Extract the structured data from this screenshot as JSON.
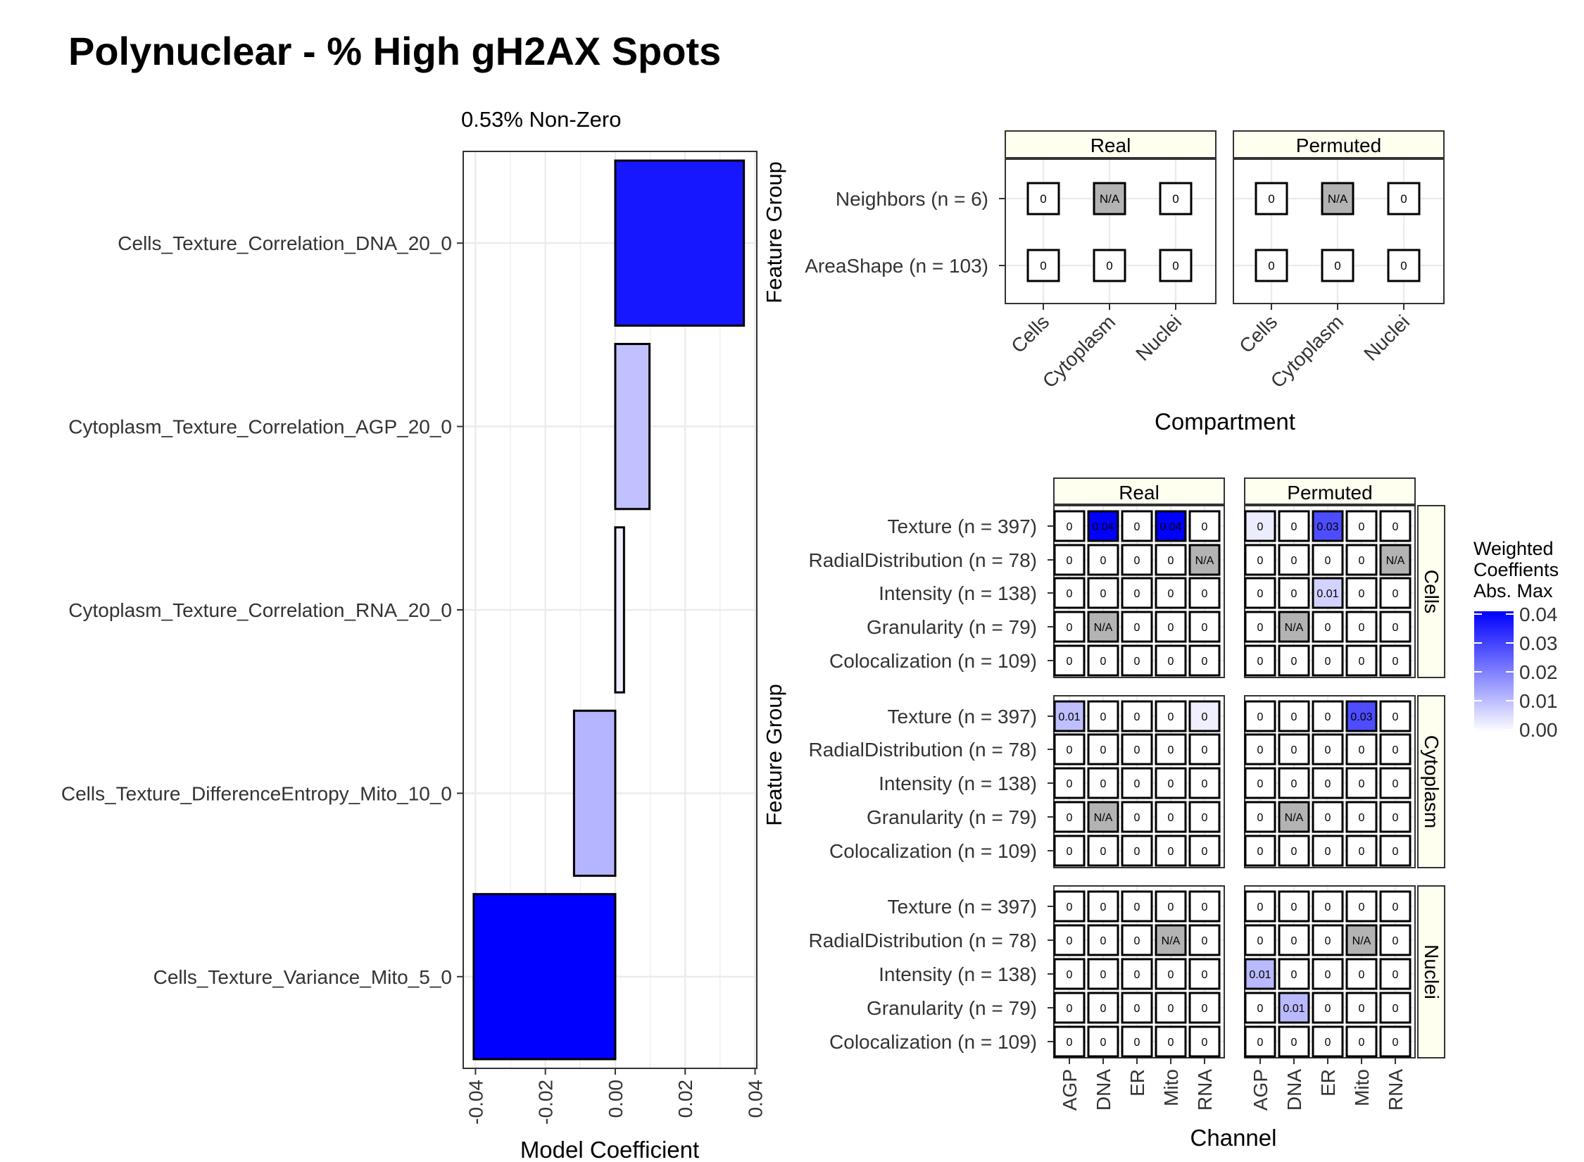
{
  "title": "Polynuclear - % High gH2AX Spots",
  "colors": {
    "fill_max": "#0000FF",
    "fill_min": "#FFFFFF",
    "na_fill": "#B3B3B3",
    "strip_fill": "#FFFFF0",
    "grid": "#EBEBEB"
  },
  "chart_data": [
    {
      "type": "bar",
      "orientation": "horizontal",
      "subtitle": "0.53% Non-Zero",
      "xlabel": "Model Coefficient",
      "categories": [
        "Cells_Texture_Correlation_DNA_20_0",
        "Cytoplasm_Texture_Correlation_AGP_20_0",
        "Cytoplasm_Texture_Correlation_RNA_20_0",
        "Cells_Texture_DifferenceEntropy_Mito_10_0",
        "Cells_Texture_Variance_Mito_5_0"
      ],
      "values": [
        0.0368,
        0.0098,
        0.0025,
        -0.0118,
        -0.0405
      ],
      "xlim": [
        -0.0435,
        0.0405
      ],
      "xticks": [
        -0.04,
        -0.02,
        0.0,
        0.02,
        0.04
      ],
      "xtick_labels": [
        "-0.04",
        "-0.02",
        "0.00",
        "0.02",
        "0.04"
      ],
      "grid": true
    },
    {
      "type": "heatmap",
      "xlabel": "Compartment",
      "ylabel": "Feature Group",
      "facets": [
        "Real",
        "Permuted"
      ],
      "columns": [
        "Cells",
        "Cytoplasm",
        "Nuclei"
      ],
      "rows": [
        "Neighbors (n = 6)",
        "AreaShape (n = 103)"
      ],
      "cells": {
        "Real": [
          [
            "0",
            "N/A",
            "0"
          ],
          [
            "0",
            "0",
            "0"
          ]
        ],
        "Permuted": [
          [
            "0",
            "N/A",
            "0"
          ],
          [
            "0",
            "0",
            "0"
          ]
        ]
      }
    },
    {
      "type": "heatmap",
      "xlabel": "Channel",
      "ylabel": "Feature Group",
      "col_facets": [
        "Real",
        "Permuted"
      ],
      "row_facets": [
        "Cells",
        "Cytoplasm",
        "Nuclei"
      ],
      "columns": [
        "AGP",
        "DNA",
        "ER",
        "Mito",
        "RNA"
      ],
      "rows": [
        "Texture (n = 397)",
        "RadialDistribution (n = 78)",
        "Intensity (n = 138)",
        "Granularity (n = 79)",
        "Colocalization (n = 109)"
      ],
      "cells": {
        "Cells": {
          "Real": [
            [
              "0",
              "0.04",
              "0",
              "0.04",
              "0"
            ],
            [
              "0",
              "0",
              "0",
              "0",
              "N/A"
            ],
            [
              "0",
              "0",
              "0",
              "0",
              "0"
            ],
            [
              "0",
              "N/A",
              "0",
              "0",
              "0"
            ],
            [
              "0",
              "0",
              "0",
              "0",
              "0"
            ]
          ],
          "Permuted": [
            [
              "0",
              "0",
              "0.03",
              "0",
              "0"
            ],
            [
              "0",
              "0",
              "0",
              "0",
              "N/A"
            ],
            [
              "0",
              "0",
              "0.01",
              "0",
              "0"
            ],
            [
              "0",
              "N/A",
              "0",
              "0",
              "0"
            ],
            [
              "0",
              "0",
              "0",
              "0",
              "0"
            ]
          ]
        },
        "Cytoplasm": {
          "Real": [
            [
              "0.01",
              "0",
              "0",
              "0",
              "0"
            ],
            [
              "0",
              "0",
              "0",
              "0",
              "0"
            ],
            [
              "0",
              "0",
              "0",
              "0",
              "0"
            ],
            [
              "0",
              "N/A",
              "0",
              "0",
              "0"
            ],
            [
              "0",
              "0",
              "0",
              "0",
              "0"
            ]
          ],
          "Permuted": [
            [
              "0",
              "0",
              "0",
              "0.03",
              "0"
            ],
            [
              "0",
              "0",
              "0",
              "0",
              "0"
            ],
            [
              "0",
              "0",
              "0",
              "0",
              "0"
            ],
            [
              "0",
              "N/A",
              "0",
              "0",
              "0"
            ],
            [
              "0",
              "0",
              "0",
              "0",
              "0"
            ]
          ]
        },
        "Nuclei": {
          "Real": [
            [
              "0",
              "0",
              "0",
              "0",
              "0"
            ],
            [
              "0",
              "0",
              "0",
              "N/A",
              "0"
            ],
            [
              "0",
              "0",
              "0",
              "0",
              "0"
            ],
            [
              "0",
              "0",
              "0",
              "0",
              "0"
            ],
            [
              "0",
              "0",
              "0",
              "0",
              "0"
            ]
          ],
          "Permuted": [
            [
              "0",
              "0",
              "0",
              "0",
              "0"
            ],
            [
              "0",
              "0",
              "0",
              "N/A",
              "0"
            ],
            [
              "0.01",
              "0",
              "0",
              "0",
              "0"
            ],
            [
              "0",
              "0.01",
              "0",
              "0",
              "0"
            ],
            [
              "0",
              "0",
              "0",
              "0",
              "0"
            ]
          ]
        }
      },
      "weights": {
        "Cells": {
          "Real": [
            [
              0,
              0.04,
              0,
              0.04,
              0
            ],
            [
              0,
              0,
              0,
              0,
              null
            ],
            [
              0,
              0,
              0,
              0,
              0
            ],
            [
              0,
              null,
              0,
              0,
              0
            ],
            [
              0,
              0,
              0,
              0,
              0
            ]
          ],
          "Permuted": [
            [
              0.003,
              0,
              0.028,
              0,
              0
            ],
            [
              0,
              0,
              0,
              0,
              null
            ],
            [
              0,
              0,
              0.007,
              0,
              0
            ],
            [
              0,
              null,
              0,
              0,
              0
            ],
            [
              0,
              0,
              0,
              0,
              0
            ]
          ]
        },
        "Cytoplasm": {
          "Real": [
            [
              0.01,
              0,
              0,
              0,
              0.0025
            ],
            [
              0,
              0,
              0,
              0,
              0
            ],
            [
              0,
              0,
              0,
              0,
              0
            ],
            [
              0,
              null,
              0,
              0,
              0
            ],
            [
              0,
              0,
              0,
              0,
              0
            ]
          ],
          "Permuted": [
            [
              0,
              0,
              0,
              0.028,
              0
            ],
            [
              0,
              0,
              0,
              0,
              0
            ],
            [
              0,
              0,
              0,
              0,
              0
            ],
            [
              0,
              null,
              0,
              0,
              0
            ],
            [
              0,
              0,
              0,
              0,
              0
            ]
          ]
        },
        "Nuclei": {
          "Real": [
            [
              0,
              0,
              0,
              0,
              0
            ],
            [
              0,
              0,
              0,
              null,
              0
            ],
            [
              0,
              0,
              0,
              0,
              0
            ],
            [
              0,
              0,
              0,
              0,
              0
            ],
            [
              0,
              0,
              0,
              0,
              0
            ]
          ],
          "Permuted": [
            [
              0,
              0,
              0,
              0,
              0
            ],
            [
              0,
              0,
              0,
              null,
              0
            ],
            [
              0.011,
              0,
              0,
              0,
              0
            ],
            [
              0,
              0.011,
              0,
              0,
              0
            ],
            [
              0,
              0,
              0,
              0,
              0
            ]
          ]
        }
      },
      "legend": {
        "title_lines": [
          "Weighted",
          "Coeffients",
          "Abs. Max"
        ],
        "placement": "right",
        "limits": [
          0,
          0.04
        ],
        "ticks": [
          0.04,
          0.03,
          0.02,
          0.01,
          0.0
        ],
        "tick_labels": [
          "0.04",
          "0.03",
          "0.02",
          "0.01",
          "0.00"
        ]
      }
    }
  ]
}
